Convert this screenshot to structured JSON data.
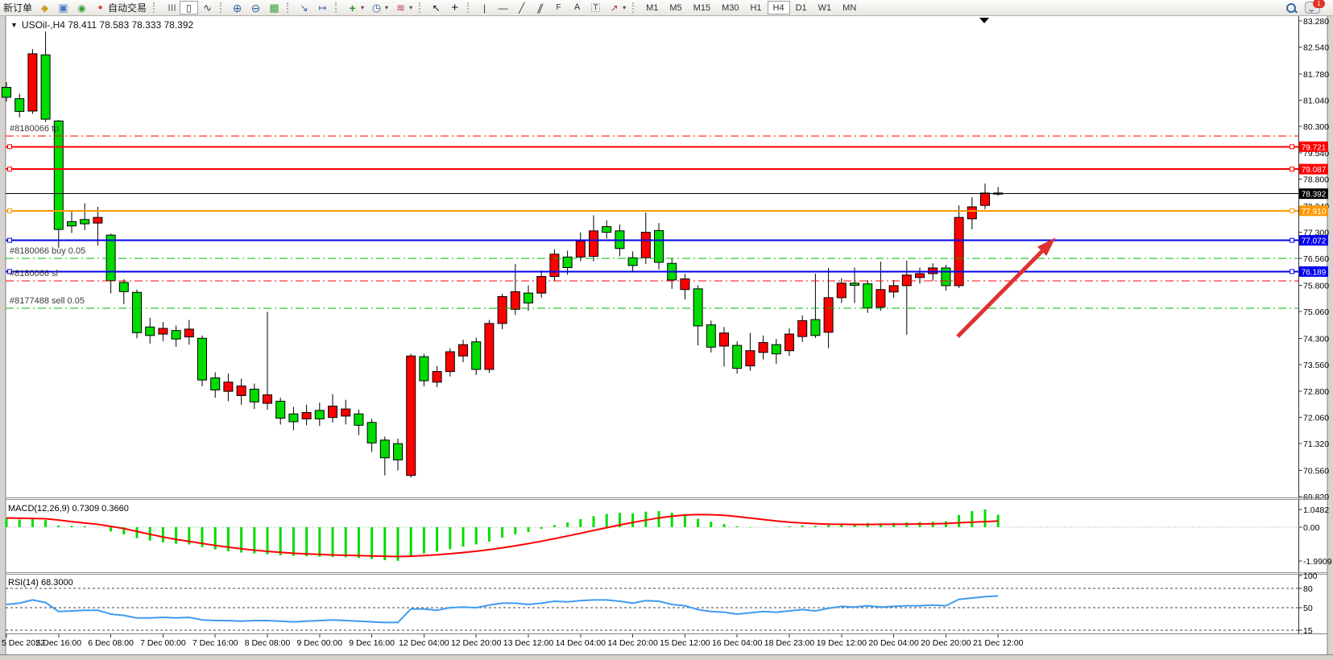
{
  "toolbar": {
    "new_order_label": "新订单",
    "autotrading_label": "自动交易",
    "timeframes": [
      "M1",
      "M5",
      "M15",
      "M30",
      "H1",
      "H4",
      "D1",
      "W1",
      "MN"
    ],
    "active_timeframe": "H4",
    "chat_badge": "1"
  },
  "chart": {
    "title": "USOil-,H4  78.411 78.583 78.333 78.392",
    "dropdown_glyph": "▼"
  },
  "chart_data": {
    "type": "candlestick",
    "symbol": "USOil",
    "timeframe": "H4",
    "title": "USOil-,H4",
    "current_bar": {
      "open": 78.411,
      "high": 78.583,
      "low": 78.333,
      "close": 78.392
    },
    "price_range": [
      69.82,
      83.28
    ],
    "up_color": "#FF0000",
    "down_color": "#00DC00",
    "note": "Chinese color convention: red = up candle, green = down candle",
    "price_axis_ticks": [
      "83.280",
      "82.540",
      "81.780",
      "81.040",
      "80.300",
      "79.540",
      "78.800",
      "78.040",
      "77.300",
      "76.560",
      "75.800",
      "75.060",
      "74.300",
      "73.560",
      "72.800",
      "72.060",
      "71.320",
      "70.560",
      "69.820"
    ],
    "time_axis_labels": [
      "5 Dec 2022",
      "5 Dec 16:00",
      "6 Dec 08:00",
      "7 Dec 00:00",
      "7 Dec 16:00",
      "8 Dec 08:00",
      "9 Dec 00:00",
      "9 Dec 16:00",
      "12 Dec 04:00",
      "12 Dec 20:00",
      "13 Dec 12:00",
      "14 Dec 04:00",
      "14 Dec 20:00",
      "15 Dec 12:00",
      "16 Dec 04:00",
      "18 Dec 23:00",
      "19 Dec 12:00",
      "20 Dec 04:00",
      "20 Dec 20:00",
      "21 Dec 12:00"
    ],
    "bars_per_time_label": 4,
    "candles": [
      [
        81.4,
        81.55,
        81.0,
        81.12
      ],
      [
        81.08,
        81.22,
        80.55,
        80.72
      ],
      [
        80.73,
        82.48,
        80.65,
        82.35
      ],
      [
        82.32,
        82.98,
        80.42,
        80.5
      ],
      [
        80.45,
        80.48,
        76.86,
        77.38
      ],
      [
        77.6,
        77.92,
        77.28,
        77.48
      ],
      [
        77.66,
        78.12,
        77.36,
        77.54
      ],
      [
        77.56,
        78.02,
        76.92,
        77.72
      ],
      [
        77.22,
        77.26,
        75.57,
        75.93
      ],
      [
        75.88,
        75.97,
        75.27,
        75.62
      ],
      [
        75.6,
        75.68,
        74.3,
        74.46
      ],
      [
        74.62,
        74.88,
        74.15,
        74.38
      ],
      [
        74.42,
        74.76,
        74.22,
        74.58
      ],
      [
        74.52,
        74.66,
        74.06,
        74.28
      ],
      [
        74.34,
        74.82,
        74.12,
        74.56
      ],
      [
        74.3,
        74.38,
        72.94,
        73.12
      ],
      [
        73.18,
        73.34,
        72.62,
        72.84
      ],
      [
        72.8,
        73.3,
        72.52,
        73.06
      ],
      [
        72.68,
        73.16,
        72.42,
        72.95
      ],
      [
        72.86,
        73.02,
        72.3,
        72.5
      ],
      [
        72.46,
        75.05,
        72.28,
        72.7
      ],
      [
        72.52,
        72.62,
        71.86,
        72.04
      ],
      [
        72.16,
        72.36,
        71.7,
        71.94
      ],
      [
        72.02,
        72.42,
        71.84,
        72.2
      ],
      [
        72.26,
        72.48,
        71.82,
        72.02
      ],
      [
        72.06,
        72.72,
        71.92,
        72.38
      ],
      [
        72.1,
        72.56,
        71.86,
        72.3
      ],
      [
        72.16,
        72.28,
        71.56,
        71.84
      ],
      [
        71.92,
        72.02,
        71.08,
        71.34
      ],
      [
        71.42,
        71.52,
        70.42,
        70.92
      ],
      [
        71.32,
        71.46,
        70.56,
        70.86
      ],
      [
        70.42,
        73.86,
        70.36,
        73.8
      ],
      [
        73.78,
        73.86,
        72.94,
        73.1
      ],
      [
        73.06,
        73.52,
        72.92,
        73.36
      ],
      [
        73.36,
        74.02,
        73.22,
        73.92
      ],
      [
        73.8,
        74.26,
        73.62,
        74.12
      ],
      [
        74.2,
        74.32,
        73.26,
        73.42
      ],
      [
        73.42,
        74.82,
        73.32,
        74.72
      ],
      [
        74.72,
        75.56,
        74.56,
        75.48
      ],
      [
        75.12,
        76.4,
        74.96,
        75.62
      ],
      [
        75.58,
        75.8,
        75.08,
        75.3
      ],
      [
        75.58,
        76.22,
        75.45,
        76.05
      ],
      [
        76.05,
        76.82,
        75.92,
        76.68
      ],
      [
        76.6,
        76.78,
        76.1,
        76.3
      ],
      [
        76.6,
        77.3,
        76.48,
        77.05
      ],
      [
        76.62,
        77.78,
        76.48,
        77.34
      ],
      [
        77.46,
        77.64,
        77.12,
        77.3
      ],
      [
        77.34,
        77.52,
        76.62,
        76.84
      ],
      [
        76.58,
        76.76,
        76.18,
        76.36
      ],
      [
        76.58,
        77.86,
        76.4,
        77.3
      ],
      [
        77.35,
        77.56,
        76.25,
        76.45
      ],
      [
        76.42,
        76.56,
        75.7,
        75.95
      ],
      [
        75.68,
        76.12,
        75.4,
        75.98
      ],
      [
        75.7,
        75.8,
        74.1,
        74.65
      ],
      [
        74.68,
        74.8,
        73.9,
        74.05
      ],
      [
        74.08,
        74.62,
        73.5,
        74.45
      ],
      [
        74.1,
        74.22,
        73.3,
        73.45
      ],
      [
        73.52,
        74.45,
        73.38,
        73.95
      ],
      [
        73.9,
        74.38,
        73.7,
        74.18
      ],
      [
        74.12,
        74.28,
        73.58,
        73.86
      ],
      [
        73.95,
        74.58,
        73.8,
        74.42
      ],
      [
        74.35,
        74.95,
        74.2,
        74.8
      ],
      [
        74.83,
        76.13,
        74.31,
        74.38
      ],
      [
        74.47,
        76.29,
        74.02,
        75.45
      ],
      [
        75.45,
        76.0,
        75.3,
        75.86
      ],
      [
        75.86,
        76.3,
        75.3,
        75.8
      ],
      [
        75.84,
        75.95,
        75.02,
        75.16
      ],
      [
        75.18,
        76.47,
        75.08,
        75.68
      ],
      [
        75.61,
        75.95,
        75.45,
        75.79
      ],
      [
        75.79,
        76.5,
        74.4,
        76.09
      ],
      [
        76.02,
        76.3,
        75.85,
        76.13
      ],
      [
        76.13,
        76.42,
        75.92,
        76.29
      ],
      [
        76.29,
        76.38,
        75.65,
        75.79
      ],
      [
        75.79,
        78.06,
        75.72,
        77.72
      ],
      [
        77.68,
        78.29,
        77.38,
        78.02
      ],
      [
        78.06,
        78.68,
        77.95,
        78.41
      ],
      [
        78.411,
        78.583,
        78.333,
        78.392
      ]
    ],
    "hlines": [
      {
        "price": 80.02,
        "color": "#FF0000",
        "style": "dashdot",
        "label": "#8180066 tp",
        "name": "take-profit-line"
      },
      {
        "price": 79.721,
        "color": "#FF0000",
        "style": "solid",
        "width": 2,
        "tag": "79.721",
        "name": "resistance-line-1"
      },
      {
        "price": 79.087,
        "color": "#FF0000",
        "style": "solid",
        "width": 2,
        "tag": "79.087",
        "name": "resistance-line-2"
      },
      {
        "price": 78.392,
        "color": "#000000",
        "style": "solid",
        "width": 1,
        "tag": "78.392",
        "name": "current-price-line",
        "no_handles": true
      },
      {
        "price": 77.91,
        "color": "#FF9800",
        "style": "solid",
        "width": 2,
        "tag": "77.910",
        "name": "orange-level-line"
      },
      {
        "price": 77.072,
        "color": "#0000EE",
        "style": "solid",
        "width": 2,
        "tag": "77.072",
        "name": "blue-level-line-1"
      },
      {
        "price": 76.56,
        "color": "#00B400",
        "style": "dashdot",
        "label": "#8180066 buy 0.05",
        "name": "buy-open-line"
      },
      {
        "price": 76.189,
        "color": "#0000EE",
        "style": "solid",
        "width": 2,
        "tag": "76.189",
        "name": "blue-level-line-2"
      },
      {
        "price": 75.92,
        "color": "#FF0000",
        "style": "dashdot",
        "label": "#8180066 sl",
        "name": "stop-loss-line"
      },
      {
        "price": 75.15,
        "color": "#00B400",
        "style": "dashdot",
        "label": "#8177488 sell 0.05",
        "name": "sell-open-line"
      }
    ],
    "arrow_annotation": {
      "x1_bar": 72.9,
      "price1": 74.35,
      "x2_bar": 80.4,
      "price2": 77.15,
      "color": "#E03131"
    },
    "macd": {
      "label": "MACD(12,26,9) 0.7309 0.3660",
      "axis_labels": [
        "1.0482",
        "0.00",
        "-1.9909"
      ],
      "axis_values": [
        1.0482,
        0,
        -1.9909
      ],
      "hist_color": "#00DC00",
      "signal_color": "#FF0000",
      "histogram": [
        0.52,
        0.45,
        0.5,
        0.42,
        0.1,
        0.08,
        0.06,
        0.02,
        -0.25,
        -0.42,
        -0.65,
        -0.8,
        -0.9,
        -0.98,
        -1.02,
        -1.18,
        -1.32,
        -1.42,
        -1.5,
        -1.55,
        -1.6,
        -1.66,
        -1.7,
        -1.72,
        -1.74,
        -1.76,
        -1.78,
        -1.82,
        -1.88,
        -1.95,
        -1.99,
        -1.7,
        -1.55,
        -1.45,
        -1.3,
        -1.15,
        -1.02,
        -0.85,
        -0.62,
        -0.42,
        -0.28,
        -0.1,
        0.12,
        0.28,
        0.48,
        0.65,
        0.78,
        0.85,
        0.82,
        0.92,
        0.95,
        0.85,
        0.72,
        0.5,
        0.32,
        0.18,
        0.05,
        -0.02,
        0.0,
        0.02,
        0.05,
        0.1,
        0.08,
        0.12,
        0.18,
        0.2,
        0.25,
        0.22,
        0.25,
        0.28,
        0.3,
        0.32,
        0.35,
        0.72,
        0.95,
        1.0482,
        0.7309
      ],
      "signal": [
        0.55,
        0.53,
        0.52,
        0.5,
        0.42,
        0.33,
        0.25,
        0.17,
        0.05,
        -0.08,
        -0.25,
        -0.42,
        -0.58,
        -0.72,
        -0.84,
        -0.96,
        -1.08,
        -1.18,
        -1.28,
        -1.36,
        -1.43,
        -1.49,
        -1.54,
        -1.58,
        -1.61,
        -1.64,
        -1.66,
        -1.68,
        -1.7,
        -1.72,
        -1.74,
        -1.72,
        -1.68,
        -1.63,
        -1.57,
        -1.5,
        -1.42,
        -1.33,
        -1.22,
        -1.1,
        -0.97,
        -0.83,
        -0.68,
        -0.52,
        -0.36,
        -0.19,
        -0.03,
        0.13,
        0.28,
        0.42,
        0.55,
        0.65,
        0.72,
        0.75,
        0.74,
        0.7,
        0.63,
        0.54,
        0.45,
        0.37,
        0.3,
        0.25,
        0.21,
        0.18,
        0.17,
        0.16,
        0.16,
        0.17,
        0.17,
        0.18,
        0.19,
        0.2,
        0.22,
        0.26,
        0.3,
        0.33,
        0.366
      ]
    },
    "rsi": {
      "label": "RSI(14) 68.3000",
      "axis_labels": [
        "100",
        "80",
        "50",
        "15"
      ],
      "axis_values": [
        100,
        80,
        50,
        15
      ],
      "levels": [
        80,
        50,
        15
      ],
      "color": "#3E9BF0",
      "values": [
        55,
        57,
        62,
        58,
        44,
        45,
        46,
        46,
        40,
        38,
        34,
        34,
        35,
        34,
        35,
        31,
        30,
        30,
        29,
        30,
        30,
        29,
        28,
        29,
        30,
        31,
        30,
        29,
        28,
        27,
        27,
        48,
        48,
        46,
        50,
        51,
        50,
        54,
        57,
        57,
        55,
        57,
        60,
        59,
        61,
        62,
        62,
        60,
        57,
        61,
        60,
        55,
        53,
        47,
        44,
        43,
        40,
        42,
        44,
        43,
        45,
        47,
        45,
        49,
        52,
        51,
        53,
        51,
        52,
        53,
        53,
        54,
        53,
        63,
        65,
        67,
        68.3
      ]
    }
  }
}
